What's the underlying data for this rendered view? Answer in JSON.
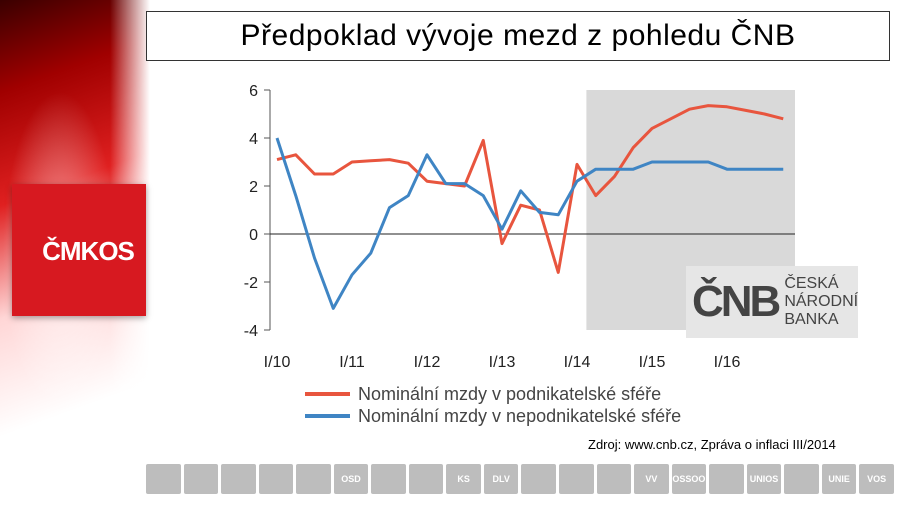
{
  "branding": {
    "left_logo_text": "ČMKOS",
    "cnb_mark": "ČNB",
    "cnb_name_line1": "ČESKÁ",
    "cnb_name_line2": "NÁRODNÍ BANKA"
  },
  "title": "Předpoklad vývoje mezd z pohledu ČNB",
  "source_note": "Zdroj: www.cnb.cz, Zpráva o inflaci III/2014",
  "footer_logos": [
    "",
    "",
    "",
    "",
    "",
    "OSD",
    "",
    "",
    "KS",
    "DLV",
    "",
    "",
    "",
    "VV",
    "OSSOO",
    "",
    "UNIOS",
    "",
    "UNIE",
    "VOS"
  ],
  "chart_data": {
    "type": "line",
    "title": "",
    "xlabel": "",
    "ylabel": "",
    "ylim": [
      -4,
      6
    ],
    "y_ticks": [
      6,
      4,
      2,
      0,
      -2,
      -4
    ],
    "x_tick_labels": [
      "I/10",
      "I/11",
      "I/12",
      "I/13",
      "I/14",
      "I/15",
      "I/16"
    ],
    "x": [
      "I/10",
      "II/10",
      "III/10",
      "IV/10",
      "I/11",
      "II/11",
      "III/11",
      "IV/11",
      "I/12",
      "II/12",
      "III/12",
      "IV/12",
      "I/13",
      "II/13",
      "III/13",
      "IV/13",
      "I/14",
      "II/14",
      "III/14",
      "IV/14",
      "I/15",
      "II/15",
      "III/15",
      "IV/15",
      "I/16",
      "II/16",
      "III/16",
      "IV/16"
    ],
    "forecast_start": "II/14",
    "forecast_end": "IV/16",
    "legend_position": "bottom",
    "grid": false,
    "series": [
      {
        "name": "Nominální mzdy v podnikatelské sféře",
        "color": "#e8553e",
        "values": [
          3.1,
          3.3,
          2.5,
          2.5,
          3.0,
          3.05,
          3.1,
          2.95,
          2.2,
          2.1,
          2.0,
          3.9,
          -0.4,
          1.2,
          1.0,
          -1.6,
          2.9,
          1.6,
          2.4,
          3.6,
          4.4,
          4.8,
          5.2,
          5.35,
          5.3,
          5.15,
          5.0,
          4.8
        ]
      },
      {
        "name": "Nominální mzdy v nepodnikatelské sféře",
        "color": "#3f85c4",
        "values": [
          4.0,
          1.6,
          -1.0,
          -3.1,
          -1.7,
          -0.8,
          1.1,
          1.6,
          3.3,
          2.1,
          2.1,
          1.6,
          0.2,
          1.8,
          0.9,
          0.8,
          2.2,
          2.7,
          2.7,
          2.7,
          3.0,
          3.0,
          3.0,
          3.0,
          2.7,
          2.7,
          2.7,
          2.7
        ]
      }
    ]
  }
}
